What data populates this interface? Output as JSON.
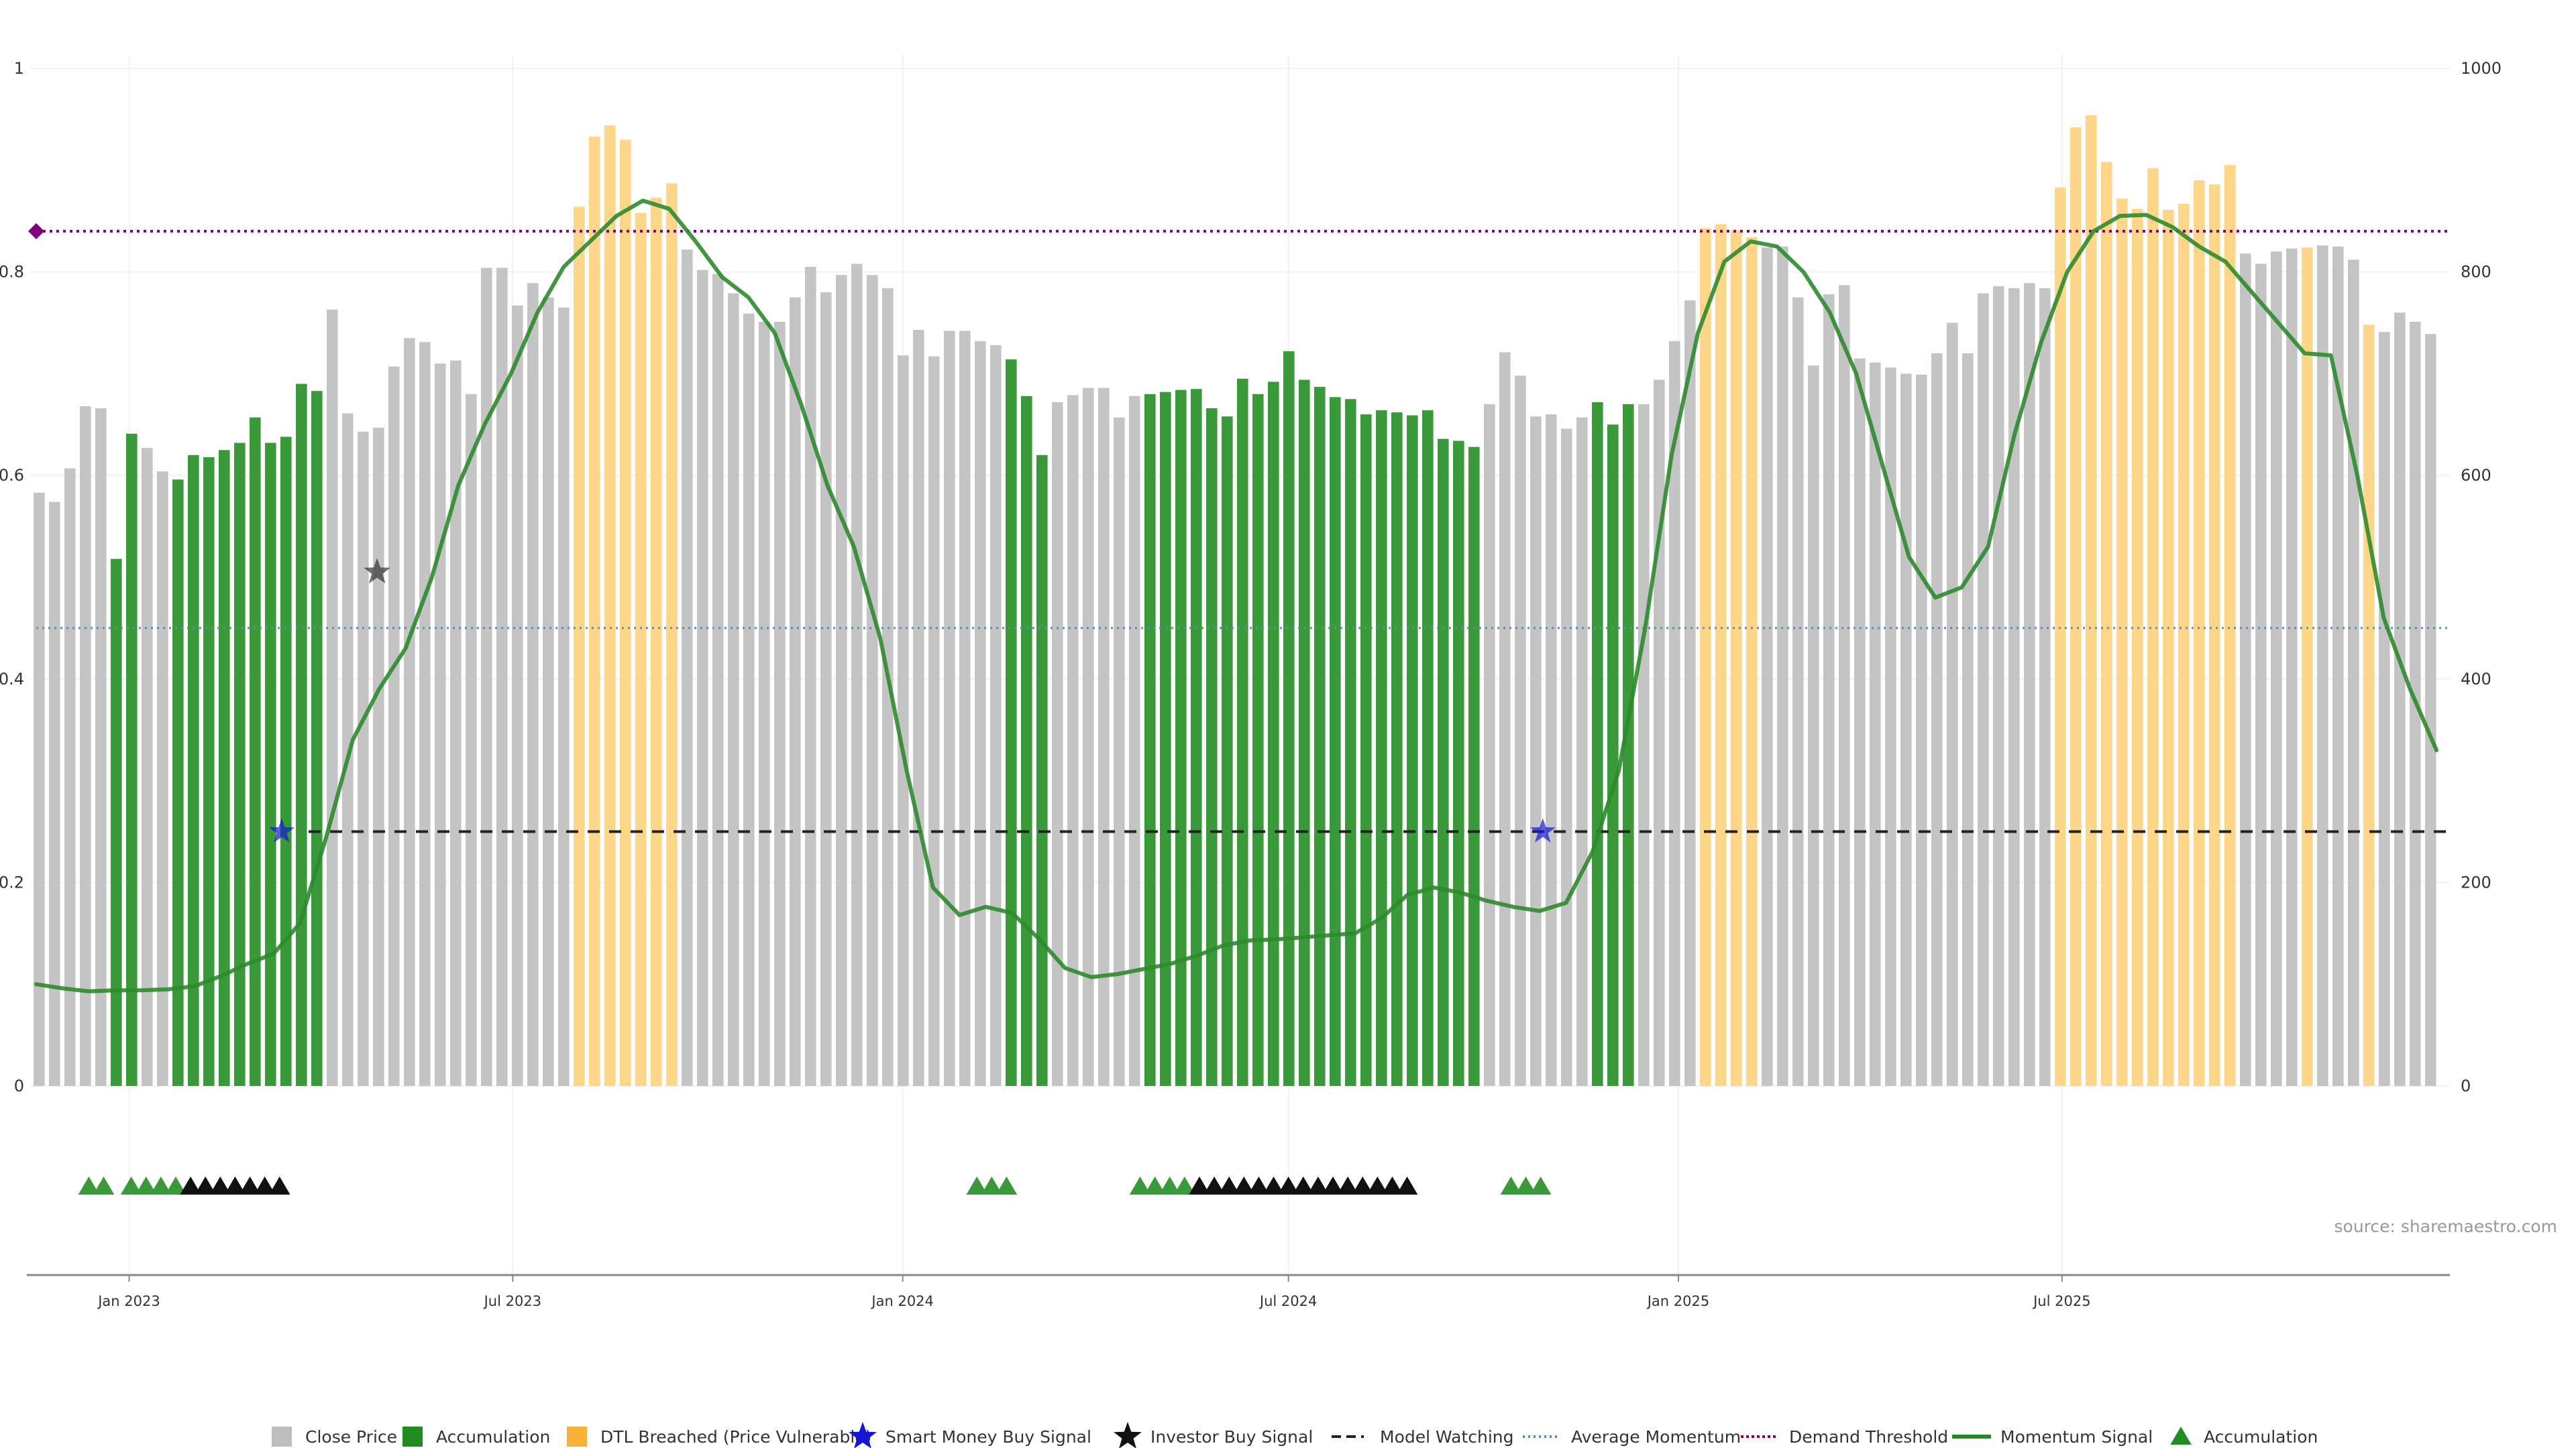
{
  "chart_data": {
    "type": "bar",
    "title": "",
    "left_axis": {
      "ylim": [
        0,
        1
      ],
      "ticks": [
        0,
        0.2,
        0.4,
        0.6,
        0.8,
        1
      ],
      "tick_labels": [
        "0",
        "0.2",
        "0.4",
        "0.6",
        "0.8",
        "1"
      ]
    },
    "right_axis": {
      "ylim": [
        0,
        1000
      ],
      "ticks": [
        0,
        200,
        400,
        600,
        800,
        1000
      ],
      "tick_labels": [
        "0",
        "200",
        "400",
        "600",
        "800",
        "1000"
      ]
    },
    "x_range": [
      "2022-11-15",
      "2025-12-31"
    ],
    "x_ticks": [
      {
        "date": "2023-01-01",
        "label": "Jan 2023"
      },
      {
        "date": "2023-07-01",
        "label": "Jul 2023"
      },
      {
        "date": "2024-01-01",
        "label": "Jan 2024"
      },
      {
        "date": "2024-07-01",
        "label": "Jul 2024"
      },
      {
        "date": "2025-01-01",
        "label": "Jan 2025"
      },
      {
        "date": "2025-07-01",
        "label": "Jul 2025"
      }
    ],
    "grid": true,
    "legend_placement": "bottom-center",
    "colors": {
      "close": "#c4c4c4",
      "accumulation": "#3a9a3a",
      "dtl": "#fdd68a",
      "momentum": "#2e8b2e",
      "demand": "#7f007f",
      "average": "#5b8fa8",
      "watch": "#222222",
      "smart": "#1515d6",
      "investor": "#333333"
    },
    "close_price": {
      "name": "Close Price",
      "values": [
        583,
        574,
        607,
        668,
        666,
        518,
        641,
        627,
        604,
        596,
        620,
        618,
        625,
        632,
        657,
        632,
        638,
        690,
        683,
        763,
        661,
        643,
        647,
        707,
        735,
        731,
        710,
        713,
        680,
        804,
        804,
        767,
        789,
        775,
        765,
        864,
        933,
        944,
        930,
        858,
        873,
        887,
        822,
        802,
        798,
        779,
        759,
        751,
        751,
        775,
        805,
        780,
        797,
        808,
        797,
        784,
        718,
        743,
        717,
        742,
        742,
        732,
        728,
        714,
        678,
        620,
        672,
        679,
        686,
        686,
        657,
        678,
        680,
        682,
        684,
        685,
        666,
        658,
        695,
        680,
        692,
        722,
        694,
        687,
        677,
        675,
        660,
        664,
        662,
        659,
        664,
        636,
        634,
        628,
        670,
        721,
        698,
        658,
        660,
        646,
        657,
        672,
        650,
        670,
        670,
        694,
        732,
        772,
        843,
        847,
        841,
        834,
        824,
        825,
        775,
        708,
        778,
        787,
        715,
        711,
        706,
        700,
        699,
        720,
        750,
        720,
        779,
        786,
        784,
        789,
        784,
        883,
        942,
        954,
        908,
        872,
        862,
        902,
        861,
        867,
        890,
        886,
        905,
        818,
        808,
        820,
        823,
        824,
        826,
        825,
        812,
        748,
        741,
        760,
        751,
        739
      ],
      "categories_color": [
        "close",
        "close",
        "close",
        "close",
        "close",
        "acc",
        "acc",
        "close",
        "close",
        "acc",
        "acc",
        "acc",
        "acc",
        "acc",
        "acc",
        "acc",
        "acc",
        "acc",
        "acc",
        "close",
        "close",
        "close",
        "close",
        "close",
        "close",
        "close",
        "close",
        "close",
        "close",
        "close",
        "close",
        "close",
        "close",
        "close",
        "close",
        "dtl",
        "dtl",
        "dtl",
        "dtl",
        "dtl",
        "dtl",
        "dtl",
        "close",
        "close",
        "close",
        "close",
        "close",
        "close",
        "close",
        "close",
        "close",
        "close",
        "close",
        "close",
        "close",
        "close",
        "close",
        "close",
        "close",
        "close",
        "close",
        "close",
        "close",
        "acc",
        "acc",
        "acc",
        "close",
        "close",
        "close",
        "close",
        "close",
        "close",
        "acc",
        "acc",
        "acc",
        "acc",
        "acc",
        "acc",
        "acc",
        "acc",
        "acc",
        "acc",
        "acc",
        "acc",
        "acc",
        "acc",
        "acc",
        "acc",
        "acc",
        "acc",
        "acc",
        "acc",
        "acc",
        "acc",
        "close",
        "close",
        "close",
        "close",
        "close",
        "close",
        "close",
        "acc",
        "acc",
        "acc",
        "close",
        "close",
        "close",
        "close",
        "dtl",
        "dtl",
        "dtl",
        "dtl",
        "close",
        "close",
        "close",
        "close",
        "close",
        "close",
        "close",
        "close",
        "close",
        "close",
        "close",
        "close",
        "close",
        "close",
        "close",
        "close",
        "close",
        "close",
        "close",
        "dtl",
        "dtl",
        "dtl",
        "dtl",
        "dtl",
        "dtl",
        "dtl",
        "dtl",
        "dtl",
        "dtl",
        "dtl",
        "dtl",
        "close",
        "close",
        "close",
        "close",
        "dtl",
        "close",
        "close",
        "close",
        "dtl",
        "close",
        "close",
        "close",
        "close",
        "close"
      ]
    },
    "momentum_signal": {
      "name": "Momentum Signal",
      "values": [
        0.1,
        0.096,
        0.093,
        0.094,
        0.094,
        0.095,
        0.098,
        0.108,
        0.12,
        0.13,
        0.16,
        0.245,
        0.34,
        0.39,
        0.43,
        0.5,
        0.59,
        0.65,
        0.7,
        0.76,
        0.805,
        0.83,
        0.855,
        0.87,
        0.862,
        0.83,
        0.795,
        0.775,
        0.74,
        0.67,
        0.59,
        0.53,
        0.44,
        0.31,
        0.195,
        0.168,
        0.176,
        0.17,
        0.145,
        0.116,
        0.107,
        0.11,
        0.115,
        0.12,
        0.128,
        0.138,
        0.143,
        0.144,
        0.146,
        0.148,
        0.15,
        0.165,
        0.188,
        0.195,
        0.19,
        0.182,
        0.176,
        0.172,
        0.18,
        0.23,
        0.31,
        0.45,
        0.62,
        0.74,
        0.81,
        0.83,
        0.825,
        0.8,
        0.76,
        0.7,
        0.61,
        0.52,
        0.48,
        0.49,
        0.53,
        0.64,
        0.73,
        0.8,
        0.84,
        0.855,
        0.856,
        0.844,
        0.825,
        0.81,
        0.78,
        0.75,
        0.72,
        0.718,
        0.6,
        0.46,
        0.39,
        0.33
      ]
    },
    "lines": {
      "demand_threshold": {
        "name": "Demand Threshold",
        "value": 0.84
      },
      "average_momentum": {
        "name": "Average Momentum",
        "value": 0.45
      },
      "model_watching": {
        "name": "Model Watching",
        "value": 0.25
      }
    },
    "smart_money_signals": [
      "2023-03-14",
      "2024-10-29"
    ],
    "investor_buy_signals": [
      {
        "date": "2023-04-28",
        "value": 0.505
      }
    ],
    "accumulation_markers": {
      "green": [
        "2022-12-13",
        "2022-12-20",
        "2023-01-02",
        "2023-01-09",
        "2023-01-16",
        "2023-01-23",
        "2024-02-05",
        "2024-02-12",
        "2024-02-19",
        "2024-04-22",
        "2024-04-29",
        "2024-05-06",
        "2024-05-13",
        "2024-10-14",
        "2024-10-21",
        "2024-10-28"
      ],
      "black_ranges": [
        [
          "2023-01-30",
          "2023-03-13"
        ],
        [
          "2024-05-20",
          "2024-08-26"
        ]
      ]
    },
    "legend": [
      {
        "key": "close",
        "label": "Close Price",
        "icon": "square",
        "color": "#bdbdbd"
      },
      {
        "key": "acc",
        "label": "Accumulation",
        "icon": "square",
        "color": "#228b22"
      },
      {
        "key": "dtl",
        "label": "DTL Breached (Price Vulnerable)",
        "icon": "square",
        "color": "#f9b236"
      },
      {
        "key": "smart",
        "label": "Smart Money Buy Signal",
        "icon": "star",
        "color": "#1515d6"
      },
      {
        "key": "investor",
        "label": "Investor Buy Signal",
        "icon": "star",
        "color": "#111111"
      },
      {
        "key": "watch",
        "label": "Model Watching",
        "icon": "dash",
        "color": "#222222"
      },
      {
        "key": "avg",
        "label": "Average Momentum",
        "icon": "dot",
        "color": "#5b8fa8"
      },
      {
        "key": "demand",
        "label": "Demand Threshold",
        "icon": "dotted",
        "color": "#7f007f"
      },
      {
        "key": "mom",
        "label": "Momentum Signal",
        "icon": "line",
        "color": "#228b22"
      },
      {
        "key": "accm",
        "label": "Accumulation",
        "icon": "triangle",
        "color": "#228b22"
      }
    ],
    "source_note": "source: sharemaestro.com"
  }
}
